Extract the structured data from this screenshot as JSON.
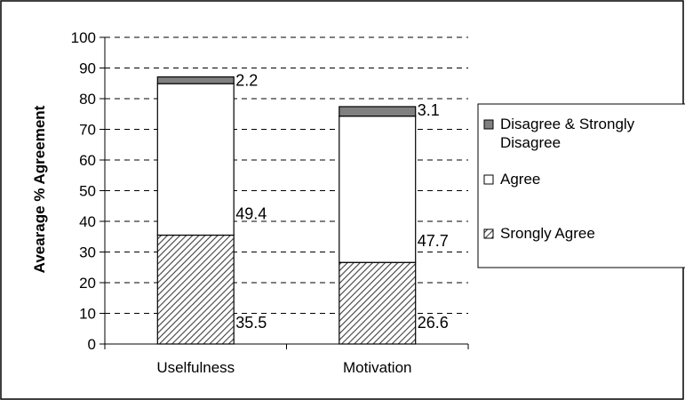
{
  "chart_data": {
    "type": "bar",
    "stacked": true,
    "title": "",
    "xlabel": "",
    "ylabel": "Avearage % Agreement",
    "ylim": [
      0,
      100
    ],
    "yticks": [
      0,
      10,
      20,
      30,
      40,
      50,
      60,
      70,
      80,
      90,
      100
    ],
    "grid": "horizontal-dashed",
    "legend_position": "right",
    "categories": [
      "Uselfulness",
      "Motivation"
    ],
    "series": [
      {
        "name": "Srongly Agree",
        "values": [
          35.5,
          26.6
        ],
        "fill": "hatched",
        "color": "#404040"
      },
      {
        "name": "Agree",
        "values": [
          49.4,
          47.7
        ],
        "fill": "solid",
        "color": "#ffffff"
      },
      {
        "name": "Disagree & Strongly Disagree",
        "values": [
          2.2,
          3.1
        ],
        "fill": "solid",
        "color": "#808080"
      }
    ],
    "legend": [
      {
        "lines": [
          "Disagree & Strongly",
          "Disagree"
        ],
        "series": 2
      },
      {
        "lines": [
          "Agree"
        ],
        "series": 1
      },
      {
        "lines": [
          "Srongly Agree"
        ],
        "series": 0
      }
    ]
  }
}
